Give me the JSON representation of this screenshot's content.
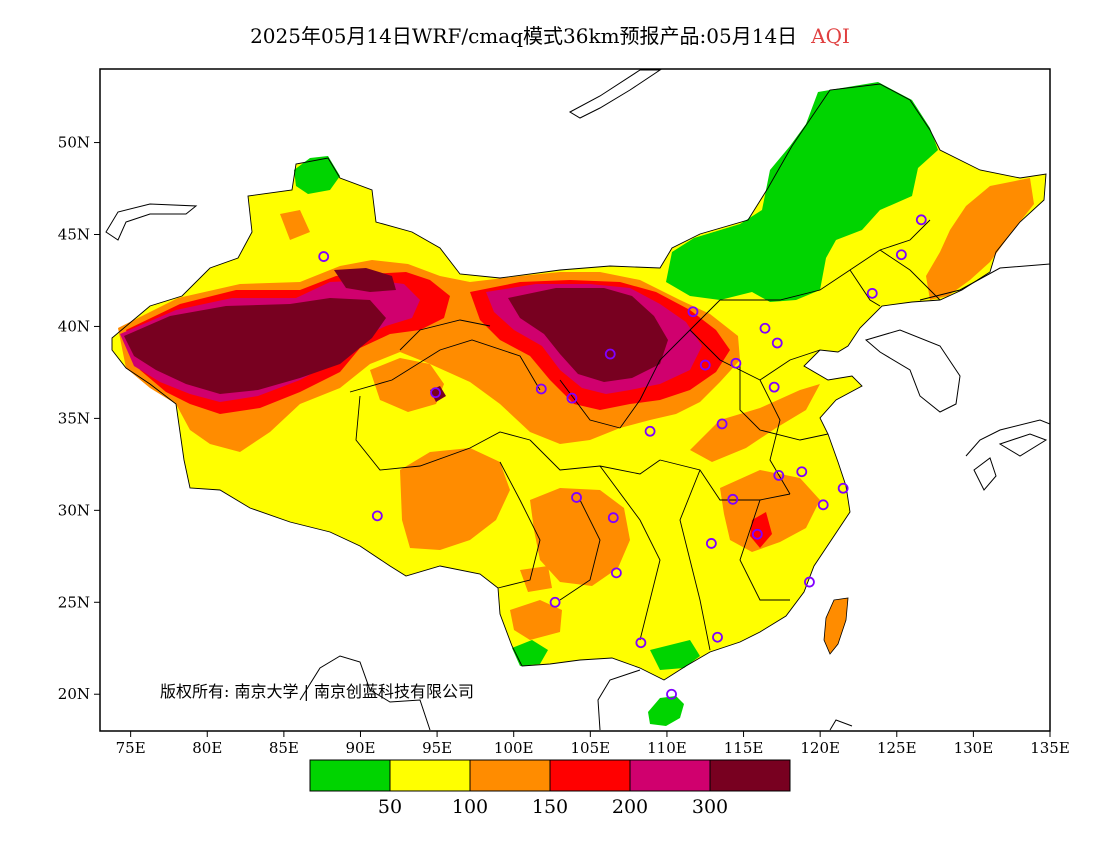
{
  "title": {
    "main": "2025年05月14日WRF/cmaq模式36km预报产品:05月14日",
    "variable": "AQI"
  },
  "map": {
    "region": "China",
    "projection": "lat-lon",
    "lon_range": [
      73,
      135
    ],
    "lat_range": [
      18,
      54
    ],
    "x_ticks": [
      "75E",
      "80E",
      "85E",
      "90E",
      "95E",
      "100E",
      "105E",
      "110E",
      "115E",
      "120E",
      "125E",
      "130E",
      "135E"
    ],
    "x_tick_values": [
      75,
      80,
      85,
      90,
      95,
      100,
      105,
      110,
      115,
      120,
      125,
      130,
      135
    ],
    "y_ticks": [
      "20N",
      "25N",
      "30N",
      "35N",
      "40N",
      "45N",
      "50N"
    ],
    "y_tick_values": [
      20,
      25,
      30,
      35,
      40,
      45,
      50
    ],
    "copyright": "版权所有: 南京大学 | 南京创蓝科技有限公司",
    "stations": [
      {
        "lon": 87.6,
        "lat": 43.8
      },
      {
        "lon": 94.9,
        "lat": 36.4
      },
      {
        "lon": 101.8,
        "lat": 36.6
      },
      {
        "lon": 103.8,
        "lat": 36.1
      },
      {
        "lon": 106.3,
        "lat": 38.5
      },
      {
        "lon": 111.7,
        "lat": 40.8
      },
      {
        "lon": 112.5,
        "lat": 37.9
      },
      {
        "lon": 114.5,
        "lat": 38.0
      },
      {
        "lon": 116.4,
        "lat": 39.9
      },
      {
        "lon": 117.2,
        "lat": 39.1
      },
      {
        "lon": 117.0,
        "lat": 36.7
      },
      {
        "lon": 113.6,
        "lat": 34.7
      },
      {
        "lon": 108.9,
        "lat": 34.3
      },
      {
        "lon": 104.1,
        "lat": 30.7
      },
      {
        "lon": 106.5,
        "lat": 29.6
      },
      {
        "lon": 106.7,
        "lat": 26.6
      },
      {
        "lon": 102.7,
        "lat": 25.0
      },
      {
        "lon": 108.3,
        "lat": 22.8
      },
      {
        "lon": 113.3,
        "lat": 23.1
      },
      {
        "lon": 110.3,
        "lat": 20.0
      },
      {
        "lon": 112.9,
        "lat": 28.2
      },
      {
        "lon": 115.9,
        "lat": 28.7
      },
      {
        "lon": 114.3,
        "lat": 30.6
      },
      {
        "lon": 117.3,
        "lat": 31.9
      },
      {
        "lon": 118.8,
        "lat": 32.1
      },
      {
        "lon": 120.2,
        "lat": 30.3
      },
      {
        "lon": 121.5,
        "lat": 31.2
      },
      {
        "lon": 119.3,
        "lat": 26.1
      },
      {
        "lon": 91.1,
        "lat": 29.7
      },
      {
        "lon": 126.6,
        "lat": 45.8
      },
      {
        "lon": 125.3,
        "lat": 43.9
      },
      {
        "lon": 123.4,
        "lat": 41.8
      }
    ]
  },
  "legend": {
    "colors": [
      "#00d400",
      "#ffff00",
      "#ff8c00",
      "#ff0000",
      "#d0006e",
      "#780020"
    ],
    "labels": [
      "50",
      "100",
      "150",
      "200",
      "300"
    ],
    "categories": [
      "AQI ≤ 50",
      "50–100",
      "100–150",
      "150–200",
      "200–300",
      "> 300"
    ]
  },
  "colors": {
    "title_accent": "#e04040",
    "station_marker": "#8000ff",
    "land_outside": "#ffffff",
    "boundary": "#000000"
  }
}
